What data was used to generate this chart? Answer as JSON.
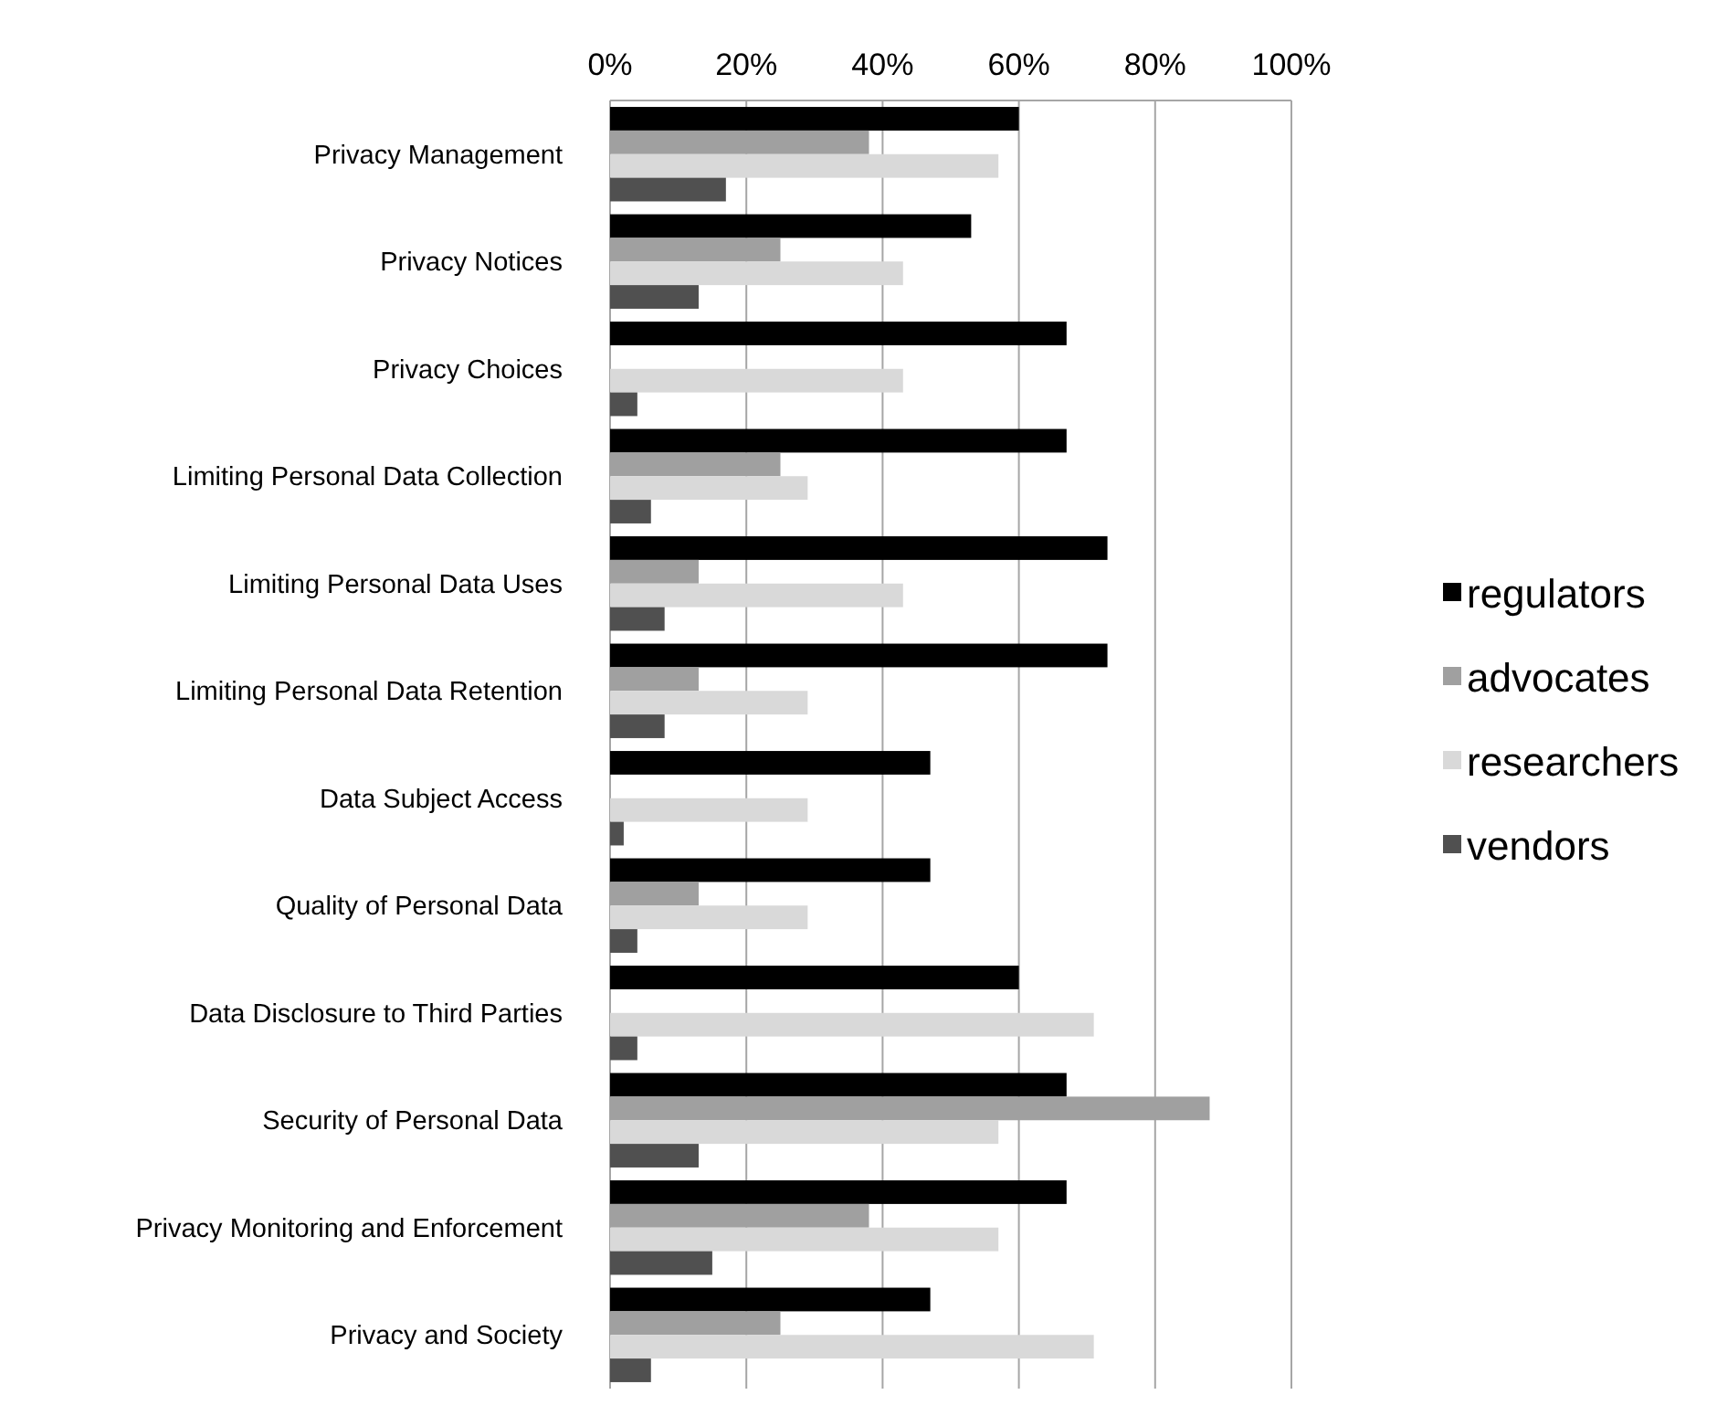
{
  "chart_data": {
    "type": "bar",
    "orientation": "horizontal",
    "categories": [
      "Privacy Management",
      "Privacy Notices",
      "Privacy Choices",
      "Limiting Personal Data Collection",
      "Limiting Personal Data Uses",
      "Limiting Personal Data Retention",
      "Data Subject Access",
      "Quality of Personal Data",
      "Data Disclosure to Third Parties",
      "Security of Personal Data",
      "Privacy Monitoring and Enforcement",
      "Privacy and Society"
    ],
    "series": [
      {
        "name": "regulators",
        "color": "#000000",
        "values": [
          60,
          53,
          67,
          67,
          73,
          73,
          47,
          47,
          60,
          67,
          67,
          47
        ]
      },
      {
        "name": "advocates",
        "color": "#a0a0a0",
        "values": [
          38,
          25,
          0,
          25,
          13,
          13,
          0,
          13,
          0,
          88,
          38,
          25
        ]
      },
      {
        "name": "researchers",
        "color": "#d9d9d9",
        "values": [
          57,
          43,
          43,
          29,
          43,
          29,
          29,
          29,
          71,
          57,
          57,
          71
        ]
      },
      {
        "name": "vendors",
        "color": "#505050",
        "values": [
          17,
          13,
          4,
          6,
          8,
          8,
          2,
          4,
          4,
          13,
          15,
          6
        ]
      }
    ],
    "xlim": [
      0,
      100
    ],
    "xticks": [
      {
        "value": 0,
        "label": "0%"
      },
      {
        "value": 20,
        "label": "20%"
      },
      {
        "value": 40,
        "label": "40%"
      },
      {
        "value": 60,
        "label": "60%"
      },
      {
        "value": 80,
        "label": "80%"
      },
      {
        "value": 100,
        "label": "100%"
      }
    ],
    "grid": "x",
    "legend": "right"
  }
}
